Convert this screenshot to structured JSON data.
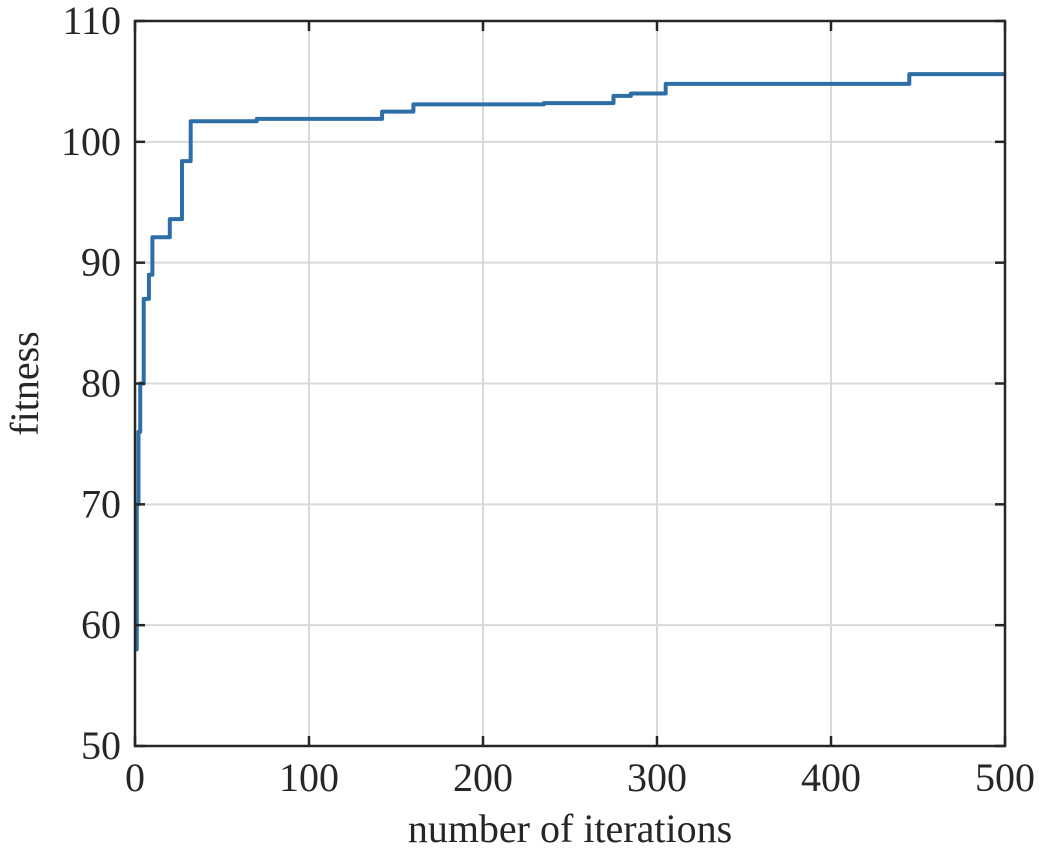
{
  "chart_data": {
    "type": "line",
    "title": "",
    "xlabel": "number of iterations",
    "ylabel": "fitness",
    "xlim": [
      0,
      500
    ],
    "ylim": [
      50,
      110
    ],
    "xticks": [
      0,
      100,
      200,
      300,
      400,
      500
    ],
    "yticks": [
      50,
      60,
      70,
      80,
      90,
      100,
      110
    ],
    "grid": true,
    "line_color": "#2e6ea6",
    "series": [
      {
        "step": true,
        "x": [
          0,
          1,
          2,
          3,
          5,
          8,
          10,
          20,
          27,
          32,
          40,
          70,
          100,
          142,
          160,
          200,
          235,
          275,
          285,
          305,
          350,
          400,
          445,
          500
        ],
        "y": [
          58,
          70,
          76,
          80,
          87,
          89,
          92.1,
          93.6,
          98.4,
          101.7,
          101.7,
          101.9,
          101.9,
          102.5,
          103.1,
          103.1,
          103.2,
          103.8,
          104,
          104.8,
          104.8,
          104.8,
          105.6,
          105.6
        ]
      }
    ]
  }
}
